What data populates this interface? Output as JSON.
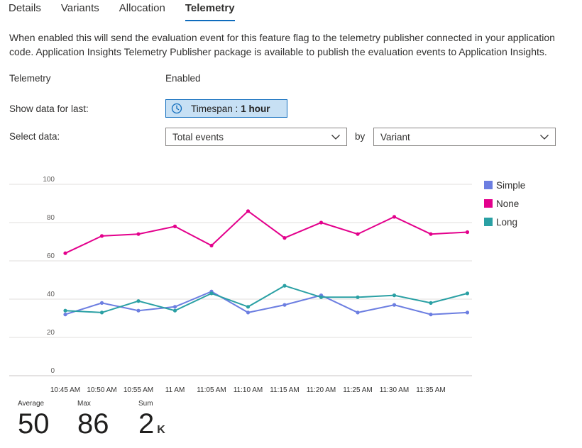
{
  "tabs": [
    {
      "label": "Details"
    },
    {
      "label": "Variants"
    },
    {
      "label": "Allocation"
    },
    {
      "label": "Telemetry"
    }
  ],
  "description": "When enabled this will send the evaluation event for this feature flag to the telemetry publisher connected in your application code. Application Insights Telemetry Publisher package is available to publish the evaluation events to Application Insights.",
  "telemetry": {
    "label": "Telemetry",
    "value": "Enabled"
  },
  "show_data": {
    "label": "Show data for last:",
    "timespan_prefix": "Timespan :",
    "timespan_value": "1 hour",
    "icon": "clock-icon"
  },
  "select_data": {
    "label": "Select data:",
    "metric": "Total events",
    "by_label": "by",
    "group_by": "Variant",
    "icon": "chevron-down-icon"
  },
  "chart_data": {
    "type": "line",
    "x": [
      "10:45 AM",
      "10:50 AM",
      "10:55 AM",
      "11 AM",
      "11:05 AM",
      "11:10 AM",
      "11:15 AM",
      "11:20 AM",
      "11:25 AM",
      "11:30 AM",
      "11:35 AM",
      ""
    ],
    "x_tick_labels": [
      "10:45 AM",
      "10:50 AM",
      "10:55 AM",
      "11 AM",
      "11:05 AM",
      "11:10 AM",
      "11:15 AM",
      "11:20 AM",
      "11:25 AM",
      "11:30 AM",
      "11:35 AM"
    ],
    "y_ticks": [
      0,
      20,
      40,
      60,
      80,
      100
    ],
    "ylim": [
      0,
      100
    ],
    "grid": true,
    "legend_position": "right",
    "series": [
      {
        "name": "Simple",
        "color": "#6c7ee1",
        "values": [
          32,
          38,
          34,
          36,
          44,
          33,
          37,
          42,
          33,
          37,
          32,
          33
        ]
      },
      {
        "name": "None",
        "color": "#e3008c",
        "values": [
          64,
          73,
          74,
          78,
          68,
          86,
          72,
          80,
          74,
          83,
          74,
          75
        ]
      },
      {
        "name": "Long",
        "color": "#2aa0a4",
        "values": [
          34,
          33,
          39,
          34,
          43,
          36,
          47,
          41,
          41,
          42,
          38,
          43
        ]
      }
    ]
  },
  "stats": [
    {
      "label": "Average",
      "value": "50",
      "unit": ""
    },
    {
      "label": "Max",
      "value": "86",
      "unit": ""
    },
    {
      "label": "Sum",
      "value": "2",
      "unit": "K"
    }
  ]
}
